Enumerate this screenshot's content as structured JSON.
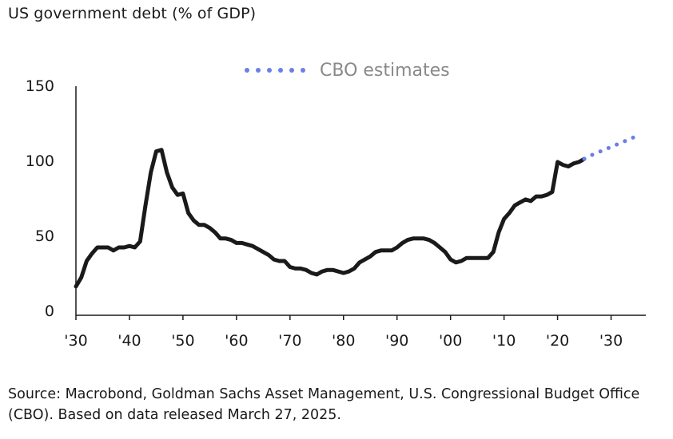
{
  "title": "US government debt (% of GDP)",
  "source": "Source: Macrobond, Goldman Sachs Asset Management, U.S. Congressional Budget Office (CBO). Based on data released March 27, 2025.",
  "chart_data": {
    "type": "line",
    "title": "US government debt (% of GDP)",
    "xlabel": "",
    "ylabel": "",
    "xlim": [
      1930,
      2035
    ],
    "ylim": [
      0,
      150
    ],
    "x_ticks": [
      1930,
      1940,
      1950,
      1960,
      1970,
      1980,
      1990,
      2000,
      2010,
      2020,
      2030
    ],
    "x_tick_labels": [
      "'30",
      "'40",
      "'50",
      "'60",
      "'70",
      "'80",
      "'90",
      "'00",
      "'10",
      "'20",
      "'30"
    ],
    "y_ticks": [
      0,
      50,
      100,
      150
    ],
    "y_tick_labels": [
      "0",
      "50",
      "100",
      "150"
    ],
    "grid": false,
    "legend": "top",
    "colors": {
      "historical": "#1a1a1a",
      "estimates": "#6b7fe8"
    },
    "series": [
      {
        "name": "",
        "style": "solid",
        "x": [
          1930,
          1931,
          1932,
          1933,
          1934,
          1935,
          1936,
          1937,
          1938,
          1939,
          1940,
          1941,
          1942,
          1943,
          1944,
          1945,
          1946,
          1947,
          1948,
          1949,
          1950,
          1951,
          1952,
          1953,
          1954,
          1955,
          1956,
          1957,
          1958,
          1959,
          1960,
          1961,
          1962,
          1963,
          1964,
          1965,
          1966,
          1967,
          1968,
          1969,
          1970,
          1971,
          1972,
          1973,
          1974,
          1975,
          1976,
          1977,
          1978,
          1979,
          1980,
          1981,
          1982,
          1983,
          1984,
          1985,
          1986,
          1987,
          1988,
          1989,
          1990,
          1991,
          1992,
          1993,
          1994,
          1995,
          1996,
          1997,
          1998,
          1999,
          2000,
          2001,
          2002,
          2003,
          2004,
          2005,
          2006,
          2007,
          2008,
          2009,
          2010,
          2011,
          2012,
          2013,
          2014,
          2015,
          2016,
          2017,
          2018,
          2019,
          2020,
          2021,
          2022,
          2023,
          2024,
          2025
        ],
        "values": [
          16,
          22,
          33,
          38,
          42,
          42,
          42,
          40,
          42,
          42,
          43,
          42,
          46,
          70,
          92,
          106,
          107,
          92,
          82,
          77,
          78,
          65,
          60,
          57,
          57,
          55,
          52,
          48,
          48,
          47,
          45,
          45,
          44,
          43,
          41,
          39,
          37,
          34,
          33,
          33,
          29,
          28,
          28,
          27,
          25,
          24,
          26,
          27,
          27,
          26,
          25,
          26,
          28,
          32,
          34,
          36,
          39,
          40,
          40,
          40,
          42,
          45,
          47,
          48,
          48,
          48,
          47,
          45,
          42,
          39,
          34,
          32,
          33,
          35,
          35,
          35,
          35,
          35,
          39,
          52,
          61,
          65,
          70,
          72,
          74,
          73,
          76,
          76,
          77,
          79,
          99,
          97,
          96,
          98,
          99,
          101
        ]
      },
      {
        "name": "CBO estimates",
        "style": "dotted",
        "x": [
          2025,
          2026,
          2027,
          2028,
          2029,
          2030,
          2031,
          2032,
          2033,
          2034,
          2035
        ],
        "values": [
          101,
          103,
          104.5,
          106,
          107.5,
          109,
          110.5,
          112,
          113.5,
          115,
          117
        ]
      }
    ]
  }
}
